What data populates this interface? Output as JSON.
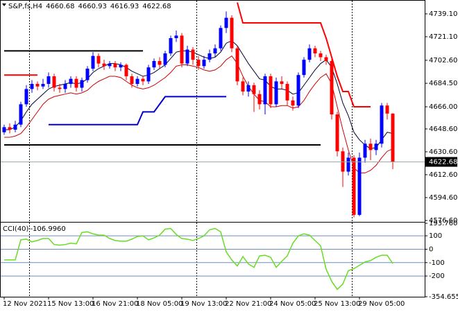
{
  "chart_data": [
    {
      "type": "candlestick",
      "title": "S&P,fs,H4",
      "categories": [
        "12 Nov 2021",
        null,
        null,
        null,
        null,
        null,
        null,
        null,
        "15 Nov 13:00",
        null,
        null,
        null,
        null,
        null,
        null,
        null,
        "16 Nov 21:00",
        null,
        null,
        null,
        null,
        null,
        null,
        null,
        "18 Nov 05:00",
        null,
        null,
        null,
        null,
        null,
        null,
        null,
        "19 Nov 13:00",
        null,
        null,
        null,
        null,
        null,
        null,
        null,
        "22 Nov 21:00",
        null,
        null,
        null,
        null,
        null,
        null,
        null,
        "24 Nov 05:00",
        null,
        null,
        null,
        null,
        null,
        null,
        null,
        "25 Nov 13:00",
        null,
        null,
        null,
        null,
        null,
        null,
        null,
        "29 Nov 05:00",
        null,
        null,
        null,
        null,
        null,
        null
      ],
      "open": [
        4646,
        4650,
        4648,
        4652,
        4668,
        4680,
        4684,
        4682,
        4684,
        4690,
        4681,
        4680,
        4684,
        4688,
        4681,
        4687,
        4696,
        4706,
        4700,
        4698,
        4700,
        4697,
        4699,
        4690,
        4684,
        4688,
        4686,
        4697,
        4702,
        4699,
        4708,
        4720,
        4722,
        4700,
        4711,
        4703,
        4698,
        4703,
        4708,
        4712,
        4728,
        4736,
        4712,
        4686,
        4678,
        4683,
        4676,
        4668,
        4690,
        4668,
        4686,
        4684,
        4671,
        4667,
        4691,
        4703,
        4712,
        4708,
        4705,
        4702,
        4660,
        4631,
        4615,
        4626,
        4581,
        4626,
        4637,
        4632,
        4637,
        4667,
        4660.68
      ],
      "high": [
        4652,
        4653,
        4655,
        4670,
        4683,
        4687,
        4686,
        4688,
        4693,
        4692,
        4684,
        4687,
        4690,
        4690,
        4689,
        4698,
        4709,
        4708,
        4703,
        4702,
        4702,
        4701,
        4700,
        4692,
        4690,
        4690,
        4699,
        4704,
        4705,
        4710,
        4722,
        4726,
        4724,
        4714,
        4713,
        4706,
        4706,
        4711,
        4715,
        4730,
        4741,
        4738,
        4714,
        4689,
        4686,
        4685,
        4679,
        4692,
        4692,
        4689,
        4690,
        4686,
        4674,
        4693,
        4705,
        4715,
        4714,
        4710,
        4707,
        4704,
        4662,
        4634,
        4630,
        4628,
        4630,
        4640,
        4641,
        4640,
        4669,
        4669,
        4660.93
      ],
      "low": [
        4644,
        4645,
        4646,
        4650,
        4666,
        4677,
        4679,
        4680,
        4681,
        4678,
        4677,
        4677,
        4681,
        4678,
        4678,
        4685,
        4694,
        4697,
        4695,
        4696,
        4694,
        4694,
        4687,
        4681,
        4682,
        4683,
        4684,
        4695,
        4696,
        4697,
        4706,
        4717,
        4697,
        4698,
        4699,
        4695,
        4696,
        4701,
        4705,
        4710,
        4724,
        4709,
        4683,
        4675,
        4674,
        4662,
        4664,
        4660,
        4665,
        4666,
        4680,
        4667,
        4663,
        4665,
        4689,
        4701,
        4705,
        4702,
        4699,
        4656,
        4627,
        4603,
        4612,
        4579,
        4580,
        4622,
        4624,
        4628,
        4634,
        4656,
        4616.93
      ],
      "close": [
        4650,
        4648,
        4652,
        4668,
        4680,
        4684,
        4682,
        4684,
        4690,
        4681,
        4680,
        4684,
        4688,
        4681,
        4687,
        4696,
        4706,
        4700,
        4698,
        4700,
        4697,
        4699,
        4690,
        4684,
        4688,
        4686,
        4697,
        4702,
        4699,
        4708,
        4720,
        4722,
        4700,
        4711,
        4703,
        4698,
        4703,
        4708,
        4712,
        4728,
        4736,
        4712,
        4686,
        4678,
        4683,
        4676,
        4668,
        4690,
        4668,
        4686,
        4684,
        4671,
        4667,
        4691,
        4703,
        4712,
        4708,
        4705,
        4702,
        4660,
        4631,
        4615,
        4626,
        4581,
        4626,
        4637,
        4632,
        4637,
        4667,
        4660.68,
        4622.68
      ],
      "up_color": "#0000ff",
      "down_color": "#ff0000",
      "ylim": [
        4576.6,
        4748.9
      ],
      "yticks": [
        {
          "value": 4739.1,
          "label": "4739.10"
        },
        {
          "value": 4721.1,
          "label": "4721.10"
        },
        {
          "value": 4702.6,
          "label": "4702.60"
        },
        {
          "value": 4684.5,
          "label": "4684.50"
        },
        {
          "value": 4666,
          "label": "4666.00"
        },
        {
          "value": 4648.6,
          "label": "4648.60"
        },
        {
          "value": 4630.6,
          "label": "4630.60"
        },
        {
          "value": 4612.6,
          "label": "4612.60"
        },
        {
          "value": 4594.6,
          "label": "4594.60"
        },
        {
          "value": 4576.6,
          "label": "4576.60"
        }
      ],
      "series": [
        {
          "color": "#ff0000",
          "values": [
            4691,
            4691,
            4691,
            4691,
            4691,
            4691,
            4691,
            null,
            null,
            null,
            null,
            null,
            null,
            null,
            null,
            null,
            null,
            null,
            null,
            null,
            null,
            null,
            null,
            null,
            null,
            null,
            null,
            null,
            null,
            null,
            null,
            null,
            null,
            null,
            null,
            null,
            null,
            null,
            null,
            null,
            null,
            null,
            4748,
            4732,
            4732,
            4732,
            4732,
            4732,
            4732,
            4732,
            4732,
            4732,
            4732,
            4732,
            4732,
            4732,
            4732,
            4732,
            4720,
            4705,
            4690,
            4678,
            4678,
            4666,
            4666,
            4666,
            4666,
            null,
            null,
            null,
            null
          ]
        },
        {
          "color": "#0000cc",
          "values": [
            null,
            null,
            null,
            null,
            null,
            null,
            null,
            null,
            4652,
            4652,
            4652,
            4652,
            4652,
            4652,
            4652,
            4652,
            4652,
            4652,
            4652,
            4652,
            4652,
            4652,
            4652,
            4652,
            4652,
            4662,
            4662,
            4662,
            4668,
            4674,
            4674,
            4674,
            4674,
            4674,
            4674,
            4674,
            4674,
            4674,
            4674,
            4674,
            4674,
            null,
            null,
            null,
            null,
            null,
            null,
            null,
            null,
            null,
            null,
            null,
            null,
            null,
            null,
            null,
            null,
            null,
            null,
            null,
            null,
            null,
            null,
            null,
            null,
            null,
            null,
            null,
            null,
            null,
            null
          ]
        },
        {
          "color": "#000000",
          "values": [
            4710,
            4710,
            4710,
            4710,
            4710,
            4710,
            4710,
            4710,
            4710,
            4710,
            4710,
            4710,
            4710,
            4710,
            4710,
            4710,
            4710,
            4710,
            4710,
            4710,
            4710,
            4710,
            4710,
            4710,
            4710,
            4710,
            null,
            null,
            null,
            null,
            null,
            null,
            null,
            null,
            null,
            null,
            null,
            null,
            null,
            null,
            null,
            null,
            null,
            null,
            null,
            null,
            null,
            null,
            null,
            null,
            null,
            null,
            null,
            null,
            null,
            null,
            null,
            null,
            null,
            null,
            null,
            null,
            null,
            null,
            null,
            null,
            null,
            null,
            null,
            null,
            null
          ]
        },
        {
          "color": "#000000",
          "values": [
            4636,
            4636,
            4636,
            4636,
            4636,
            4636,
            4636,
            4636,
            4636,
            4636,
            4636,
            4636,
            4636,
            4636,
            4636,
            4636,
            4636,
            4636,
            4636,
            4636,
            4636,
            4636,
            4636,
            4636,
            4636,
            4636,
            4636,
            4636,
            4636,
            4636,
            4636,
            4636,
            4636,
            4636,
            4636,
            4636,
            4636,
            4636,
            4636,
            4636,
            4636,
            4636,
            4636,
            4636,
            4636,
            4636,
            4636,
            4636,
            4636,
            4636,
            4636,
            4636,
            4636,
            4636,
            4636,
            4636,
            4636,
            4636,
            null,
            null,
            null,
            null,
            null,
            null,
            null,
            null,
            null,
            null,
            null,
            null,
            null
          ]
        },
        {
          "color": "#000033",
          "values": [
            4648,
            4648,
            4650,
            4655,
            4662,
            4668,
            4672,
            4676,
            4680,
            4682,
            4683,
            4684,
            4685,
            4684,
            4685,
            4688,
            4693,
            4696,
            4698,
            4700,
            4700,
            4699,
            4697,
            4694,
            4692,
            4690,
            4691,
            4693,
            4696,
            4699,
            4704,
            4709,
            4710,
            4710,
            4709,
            4707,
            4705,
            4704,
            4705,
            4709,
            4716,
            4718,
            4714,
            4707,
            4700,
            4694,
            4688,
            4687,
            4682,
            4680,
            4680,
            4679,
            4676,
            4677,
            4683,
            4689,
            4695,
            4700,
            4703,
            4697,
            4684,
            4669,
            4659,
            4646,
            4640,
            4636,
            4633,
            4634,
            4640,
            4646,
            4645
          ]
        },
        {
          "color": "#cc0000",
          "values": [
            4642,
            4642,
            4643,
            4645,
            4650,
            4656,
            4662,
            4668,
            4672,
            4674,
            4675,
            4676,
            4677,
            4676,
            4677,
            4679,
            4683,
            4686,
            4688,
            4690,
            4690,
            4689,
            4686,
            4683,
            4681,
            4680,
            4681,
            4683,
            4686,
            4689,
            4693,
            4698,
            4699,
            4699,
            4698,
            4697,
            4695,
            4694,
            4695,
            4698,
            4703,
            4706,
            4700,
            4690,
            4682,
            4676,
            4671,
            4670,
            4666,
            4666,
            4667,
            4667,
            4665,
            4666,
            4671,
            4678,
            4684,
            4689,
            4692,
            4684,
            4666,
            4648,
            4632,
            4618,
            4614,
            4614,
            4616,
            4620,
            4626,
            4631,
            4633
          ]
        }
      ]
    },
    {
      "type": "line",
      "title": "CCI(40)",
      "color": "#66dd22",
      "values": [
        -80,
        -80,
        -80,
        70,
        75,
        55,
        65,
        80,
        80,
        35,
        30,
        35,
        45,
        40,
        125,
        130,
        115,
        105,
        105,
        80,
        65,
        60,
        60,
        75,
        95,
        100,
        70,
        85,
        105,
        150,
        155,
        110,
        80,
        75,
        65,
        80,
        100,
        145,
        155,
        130,
        -20,
        -80,
        -125,
        -55,
        -110,
        -135,
        -50,
        -45,
        -60,
        -135,
        -90,
        -50,
        45,
        100,
        115,
        105,
        65,
        25,
        -150,
        -240,
        -300,
        -260,
        -160,
        -145,
        -120,
        -95,
        -85,
        -60,
        -45,
        -45,
        -106.996
      ],
      "value_labels": [
        null,
        null,
        null,
        null,
        null,
        null,
        null,
        null,
        null,
        null,
        null,
        null,
        null,
        null,
        null,
        null,
        null,
        null,
        null,
        null,
        null,
        null,
        null,
        null,
        null,
        null,
        null,
        null,
        null,
        null,
        null,
        null,
        null,
        null,
        null,
        null,
        null,
        null,
        null,
        null,
        null,
        null,
        null,
        null,
        null,
        null,
        null,
        null,
        null,
        null,
        null,
        null,
        null,
        null,
        null,
        null,
        null,
        null,
        null,
        null,
        null,
        null,
        null,
        null,
        null,
        null,
        null,
        null,
        null,
        null,
        "-106.9960"
      ],
      "ylim": [
        -354.655,
        193.7606
      ],
      "yticks": [
        193.7606,
        100,
        0,
        -100,
        -200,
        -354.655
      ]
    }
  ]
}
